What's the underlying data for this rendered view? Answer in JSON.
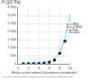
{
  "chart_data": {
    "type": "line",
    "ylabel": "H (10³ Pa)",
    "xlabel": "Mohs-scale ordinal (hardness standards)",
    "caption": "The value 7/5 of the diamond (8 800 to 10 000) falls outside the shown frame",
    "series": [
      {
        "type": "line",
        "line_style": "solid",
        "color": "#55ddff",
        "x": [
          1,
          1.5,
          2,
          2.5,
          3,
          3.5,
          4,
          4.5,
          5,
          5.5,
          6,
          6.5,
          7,
          7.5,
          8,
          8.5,
          9
        ],
        "values": [
          2,
          3,
          5,
          8,
          12,
          18,
          25,
          40,
          60,
          90,
          130,
          200,
          300,
          500,
          750,
          1100,
          1600
        ]
      },
      {
        "type": "line",
        "line_style": "dashed",
        "color": "#55ddff",
        "x": [
          9,
          9.3,
          9.6,
          9.8,
          10
        ],
        "values": [
          1600,
          2000,
          2400,
          2600,
          3200
        ]
      },
      {
        "type": "scatter",
        "marker": "square",
        "color": "#222222",
        "x": [
          1,
          2,
          3,
          4,
          5,
          6,
          7,
          8,
          9
        ],
        "values": [
          2,
          5,
          12,
          22,
          45,
          100,
          230,
          650,
          1400
        ]
      }
    ],
    "xlim": [
      0,
      10
    ],
    "xticks": [
      0,
      2,
      4,
      6,
      8,
      10
    ],
    "ylim": [
      0,
      3500
    ],
    "yticks": [
      0,
      500,
      {
        "value": 1000,
        "label": "1 000"
      },
      {
        "value": 1500,
        "label": "1 500"
      },
      {
        "value": 2000,
        "label": "2 000"
      },
      {
        "value": 2500,
        "label": "2 500"
      },
      {
        "value": 3000,
        "label": "3 000"
      },
      {
        "value": 3500,
        "label": "3 500"
      }
    ],
    "grid": true,
    "annotations": [
      {
        "x": 9.05,
        "y": 2450,
        "text": "a = 800"
      },
      {
        "x": 9.05,
        "y": 2300,
        "text": "b = 1 600"
      },
      {
        "x": 9.05,
        "y": 2150,
        "text": "c = Dia"
      },
      {
        "x": 9.05,
        "y": 2000,
        "text": "  10 000"
      }
    ]
  }
}
